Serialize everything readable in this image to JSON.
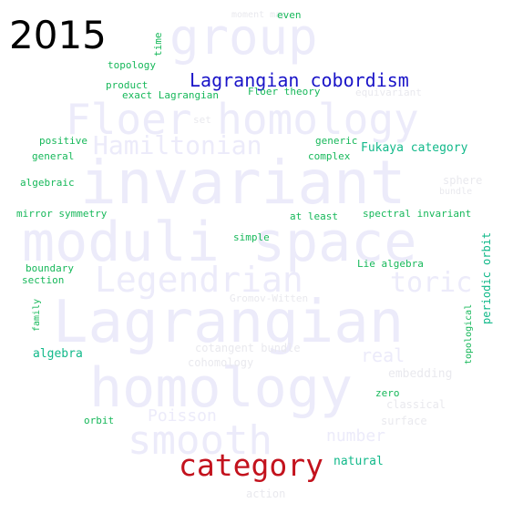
{
  "year": "2015",
  "colors": {
    "background": "#ffffff",
    "faded": "#ecebfa",
    "faded_small": "#e9e9ee",
    "green": "#17b85a",
    "teal": "#12b98a",
    "blue": "#1a14c8",
    "red": "#c3121d"
  },
  "background_words": [
    "group",
    "Floer homology",
    "Hamiltonian",
    "invariant",
    "moduli space",
    "Legendrian",
    "toric",
    "Lagrangian",
    "homology",
    "smooth",
    "Poisson",
    "real",
    "number",
    "cotangent bundle",
    "cohomology",
    "Gromov-Witten",
    "embedding",
    "surface",
    "sphere",
    "action",
    "set",
    "bundle",
    "equivariant",
    "classical",
    "moment map"
  ],
  "words": [
    {
      "text": "even",
      "color": "green"
    },
    {
      "text": "time",
      "color": "green"
    },
    {
      "text": "topology",
      "color": "green"
    },
    {
      "text": "product",
      "color": "green"
    },
    {
      "text": "Lagrangian cobordism",
      "color": "blue"
    },
    {
      "text": "exact Lagrangian",
      "color": "green"
    },
    {
      "text": "Floer theory",
      "color": "green"
    },
    {
      "text": "positive",
      "color": "green"
    },
    {
      "text": "generic",
      "color": "green"
    },
    {
      "text": "Fukaya category",
      "color": "teal"
    },
    {
      "text": "general",
      "color": "green"
    },
    {
      "text": "complex",
      "color": "green"
    },
    {
      "text": "algebraic",
      "color": "green"
    },
    {
      "text": "mirror symmetry",
      "color": "green"
    },
    {
      "text": "at least",
      "color": "green"
    },
    {
      "text": "spectral invariant",
      "color": "green"
    },
    {
      "text": "periodic orbit",
      "color": "teal"
    },
    {
      "text": "simple",
      "color": "green"
    },
    {
      "text": "Lie algebra",
      "color": "green"
    },
    {
      "text": "boundary",
      "color": "green"
    },
    {
      "text": "section",
      "color": "green"
    },
    {
      "text": "family",
      "color": "green"
    },
    {
      "text": "topological",
      "color": "green"
    },
    {
      "text": "algebra",
      "color": "teal"
    },
    {
      "text": "zero",
      "color": "green"
    },
    {
      "text": "orbit",
      "color": "green"
    },
    {
      "text": "category",
      "color": "red"
    },
    {
      "text": "natural",
      "color": "teal"
    }
  ]
}
